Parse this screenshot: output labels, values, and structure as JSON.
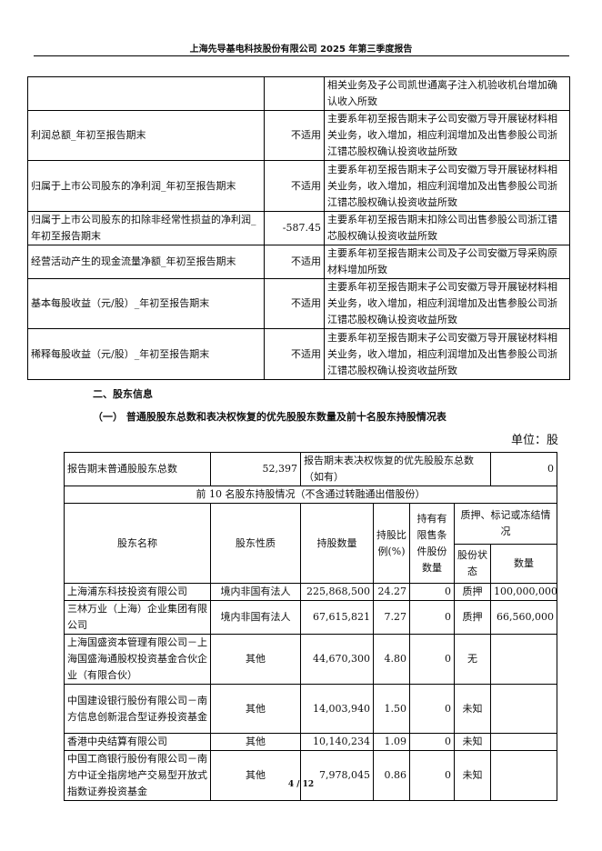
{
  "header": {
    "title": "上海先导基电科技股份有限公司 2025 年第三季度报告"
  },
  "table1": {
    "rows": [
      {
        "item": "",
        "value": "",
        "reason": "相关业务及子公司凯世通离子注入机验收机台增加确认收入所致"
      },
      {
        "item": "利润总额_年初至报告期末",
        "value": "不适用",
        "reason": "主要系年初至报告期末子公司安徽万导开展铋材料相关业务，收入增加，相应利润增加及出售参股公司浙江镨芯股权确认投资收益所致"
      },
      {
        "item": "归属于上市公司股东的净利润_年初至报告期末",
        "value": "不适用",
        "reason": "主要系年初至报告期末子公司安徽万导开展铋材料相关业务，收入增加，相应利润增加及出售参股公司浙江镨芯股权确认投资收益所致"
      },
      {
        "item": "归属于上市公司股东的扣除非经常性损益的净利润_年初至报告期末",
        "value": "-587.45",
        "reason": "主要系年初至报告期末扣除公司出售参股公司浙江镨芯股权确认投资收益所致"
      },
      {
        "item": "经营活动产生的现金流量净额_年初至报告期末",
        "value": "不适用",
        "reason": "主要系年初至报告期末公司及子公司安徽万导采购原材料增加所致"
      },
      {
        "item": "基本每股收益（元/股）_年初至报告期末",
        "value": "不适用",
        "reason": "主要系年初至报告期末子公司安徽万导开展铋材料相关业务，收入增加，相应利润增加及出售参股公司浙江镨芯股权确认投资收益所致"
      },
      {
        "item": "稀释每股收益（元/股）_年初至报告期末",
        "value": "不适用",
        "reason": "主要系年初至报告期末子公司安徽万导开展铋材料相关业务，收入增加，相应利润增加及出售参股公司浙江镨芯股权确认投资收益所致"
      }
    ]
  },
  "section": {
    "title": "二、股东信息",
    "subtitle": "（一） 普通股股东总数和表决权恢复的优先股股东数量及前十名股东持股情况表",
    "unit": "单位：股"
  },
  "table2": {
    "total_label": "报告期末普通股股东总数",
    "total_value": "52,397",
    "pref_label": "报告期末表决权恢复的优先股股东总数（如有）",
    "pref_value": "0",
    "top10_label": "前 10 名股东持股情况（不含通过转融通出借股份）",
    "headers": {
      "name": "股东名称",
      "nature": "股东性质",
      "shares": "持股数量",
      "ratio": "持股比例(%)",
      "restricted": "持有有限售条件股份数量",
      "pledge": "质押、标记或冻结情况",
      "status": "股份状态",
      "qty": "数量"
    },
    "rows": [
      {
        "name": "上海浦东科技投资有限公司",
        "nature": "境内非国有法人",
        "shares": "225,868,500",
        "ratio": "24.27",
        "restricted": "0",
        "status": "质押",
        "qty": "100,000,000"
      },
      {
        "name": "三林万业（上海）企业集团有限公司",
        "nature": "境内非国有法人",
        "shares": "67,615,821",
        "ratio": "7.27",
        "restricted": "0",
        "status": "质押",
        "qty": "66,560,000"
      },
      {
        "name": "上海国盛资本管理有限公司－上海国盛海通股权投资基金合伙企业（有限合伙）",
        "nature": "其他",
        "shares": "44,670,300",
        "ratio": "4.80",
        "restricted": "0",
        "status": "无",
        "qty": ""
      },
      {
        "name": "中国建设银行股份有限公司－南方信息创新混合型证券投资基金",
        "nature": "其他",
        "shares": "14,003,940",
        "ratio": "1.50",
        "restricted": "0",
        "status": "未知",
        "qty": ""
      },
      {
        "name": "香港中央结算有限公司",
        "nature": "其他",
        "shares": "10,140,234",
        "ratio": "1.09",
        "restricted": "0",
        "status": "未知",
        "qty": ""
      },
      {
        "name": "中国工商银行股份有限公司－南方中证全指房地产交易型开放式指数证券投资基金",
        "nature": "其他",
        "shares": "7,978,045",
        "ratio": "0.86",
        "restricted": "0",
        "status": "未知",
        "qty": ""
      }
    ]
  },
  "footer": {
    "page": "4 / 12"
  }
}
